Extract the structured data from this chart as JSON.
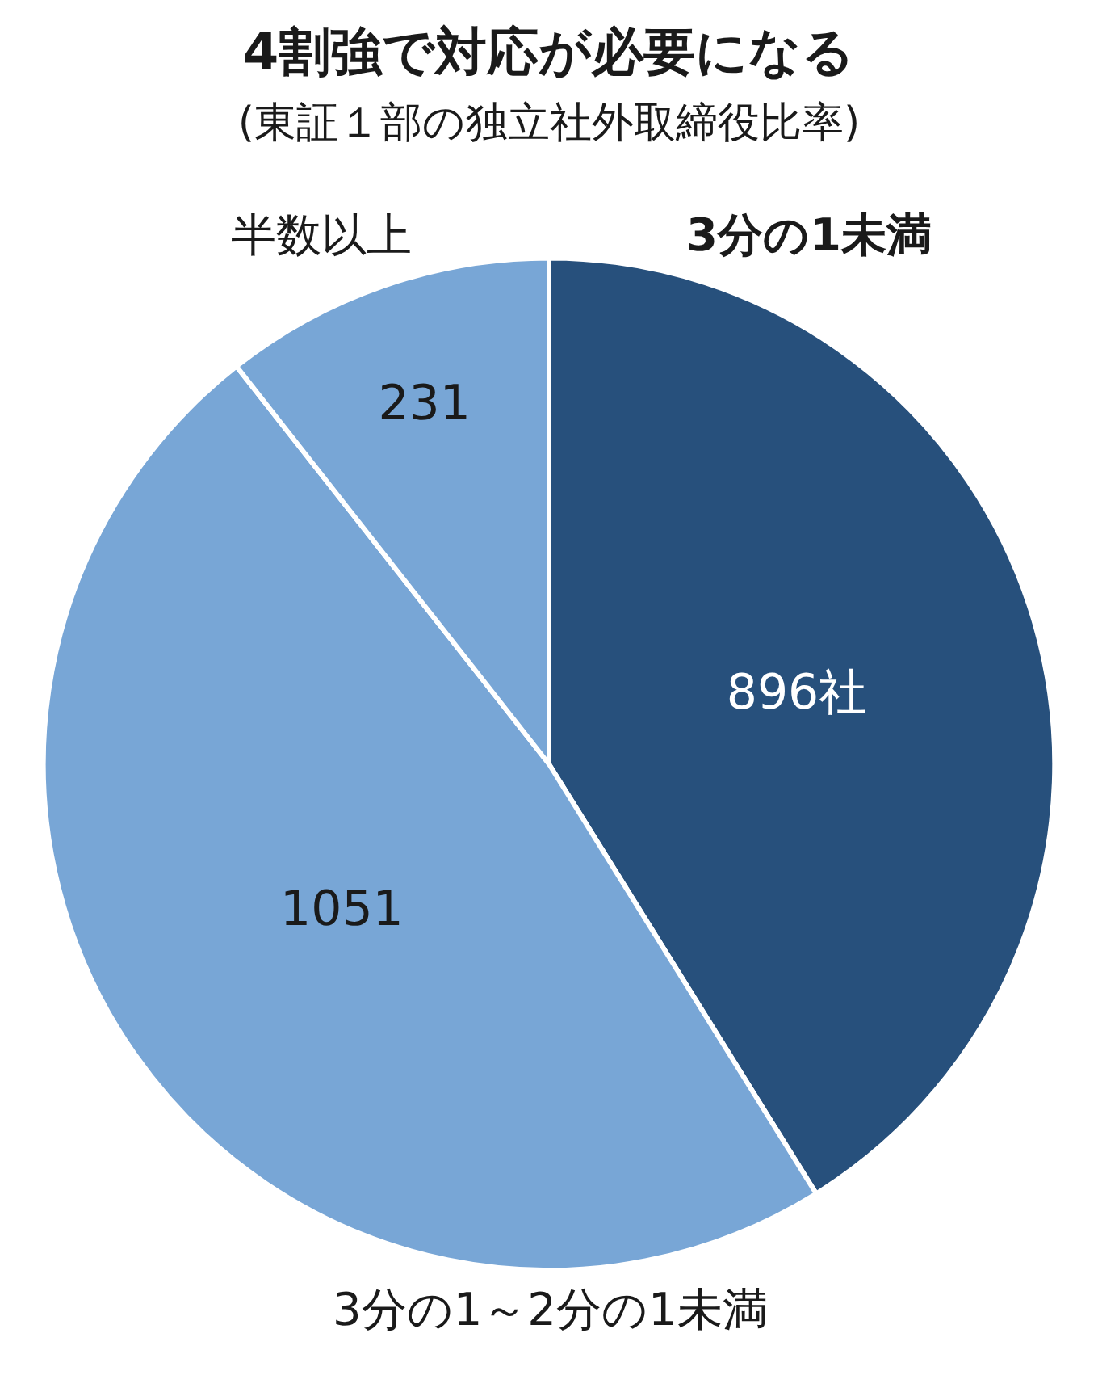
{
  "chart_data": {
    "type": "pie",
    "title": "4割強で対応が必要になる",
    "subtitle": "(東証１部の独立社外取締役比率)",
    "categories": [
      "3分の1未満",
      "3分の1～2分の1未満",
      "半数以上"
    ],
    "values": [
      896,
      1051,
      231
    ],
    "value_labels": [
      "896社",
      "1051",
      "231"
    ],
    "colors": [
      "#27507c",
      "#78a6d6",
      "#78a6d6"
    ],
    "legend": false
  }
}
